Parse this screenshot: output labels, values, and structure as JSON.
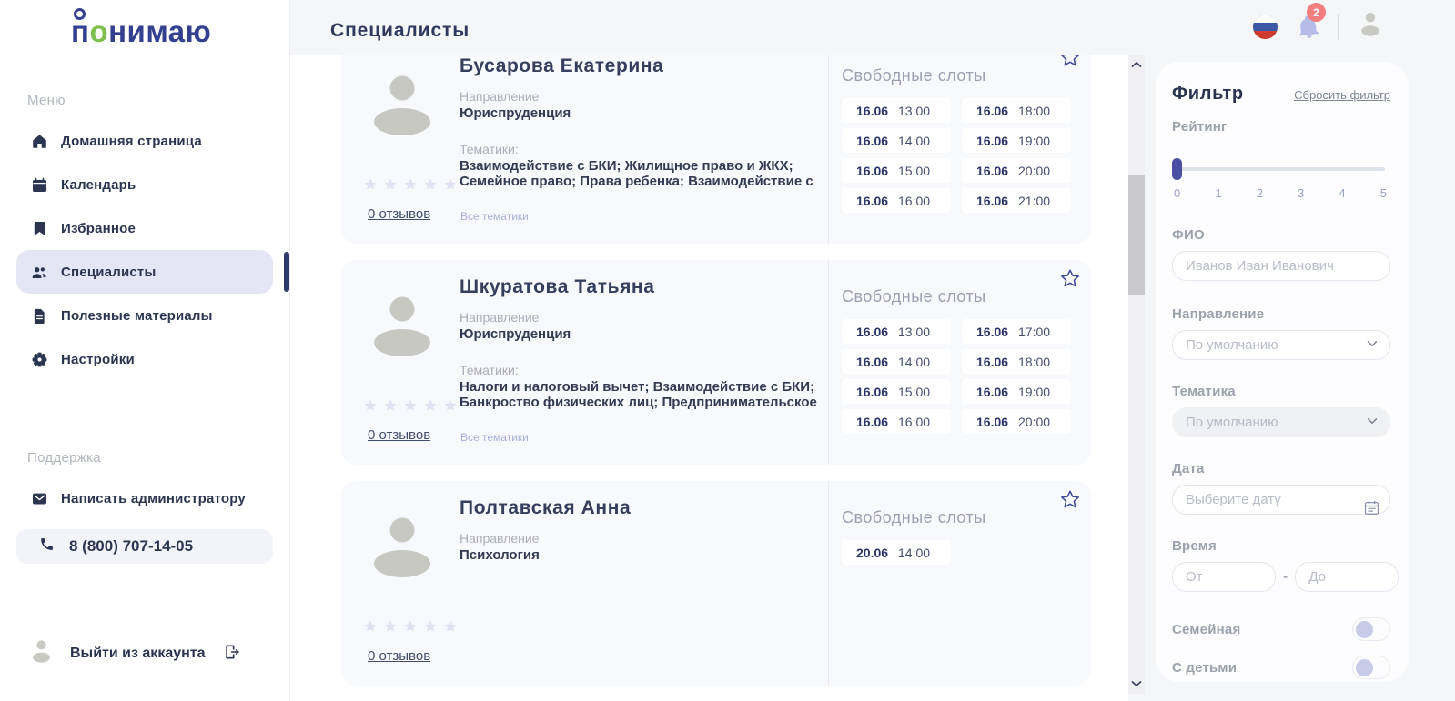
{
  "colors": {
    "brand_navy": "#333f8f",
    "brand_green": "#7fbf4f",
    "text_navy": "#2b3550",
    "slider_thumb": "#4a51a3",
    "badge_red": "#f27e80",
    "card_background": "#f8f9fc",
    "inactive_star": "#dfe2f3",
    "bell_purple": "#b7bce6",
    "active_item_background": "#e4e6f6"
  },
  "brand": {
    "logo_first": "п",
    "logo_accent": "о",
    "logo_rest": "нимаю"
  },
  "topbar": {
    "title": "Специалисты",
    "notification_count": "2"
  },
  "sidebar": {
    "menu_section": "Меню",
    "items": [
      {
        "label": "Домашняя страница",
        "icon": "home-icon",
        "active": false
      },
      {
        "label": "Календарь",
        "icon": "calendar-icon",
        "active": false
      },
      {
        "label": "Избранное",
        "icon": "bookmark-icon",
        "active": false
      },
      {
        "label": "Специалисты",
        "icon": "users-icon",
        "active": true
      },
      {
        "label": "Полезные материалы",
        "icon": "materials-icon",
        "active": false
      },
      {
        "label": "Настройки",
        "icon": "settings-icon",
        "active": false
      }
    ],
    "support_section": "Поддержка",
    "admin_link": "Написать администратору",
    "phone": "8 (800) 707-14-05",
    "logout": "Выйти из аккаунта"
  },
  "specialists": [
    {
      "name": "Бусарова Екатерина",
      "direction_label": "Направление",
      "direction": "Юриспруденция",
      "topics_label": "Тематики:",
      "topics": "Взаимодействие с БКИ; Жилищное право и ЖКХ; Семейное право; Права ребенка; Взаимодействие с",
      "rating": 0,
      "stars_total": 5,
      "reviews": "0 отзывов",
      "all_topics_link": "Все тематики",
      "slots_title": "Свободные слоты",
      "slot_columns": [
        [
          {
            "date": "16.06",
            "time": "13:00"
          },
          {
            "date": "16.06",
            "time": "14:00"
          },
          {
            "date": "16.06",
            "time": "15:00"
          },
          {
            "date": "16.06",
            "time": "16:00"
          }
        ],
        [
          {
            "date": "16.06",
            "time": "18:00"
          },
          {
            "date": "16.06",
            "time": "19:00"
          },
          {
            "date": "16.06",
            "time": "20:00"
          },
          {
            "date": "16.06",
            "time": "21:00"
          }
        ]
      ]
    },
    {
      "name": "Шкуратова Татьяна",
      "direction_label": "Направление",
      "direction": "Юриспруденция",
      "topics_label": "Тематики:",
      "topics": "Налоги и налоговый вычет; Взаимодействие с БКИ; Банкроство физических лиц; Предпринимательское",
      "rating": 0,
      "stars_total": 5,
      "reviews": "0 отзывов",
      "all_topics_link": "Все тематики",
      "slots_title": "Свободные слоты",
      "slot_columns": [
        [
          {
            "date": "16.06",
            "time": "13:00"
          },
          {
            "date": "16.06",
            "time": "14:00"
          },
          {
            "date": "16.06",
            "time": "15:00"
          },
          {
            "date": "16.06",
            "time": "16:00"
          }
        ],
        [
          {
            "date": "16.06",
            "time": "17:00"
          },
          {
            "date": "16.06",
            "time": "18:00"
          },
          {
            "date": "16.06",
            "time": "19:00"
          },
          {
            "date": "16.06",
            "time": "20:00"
          }
        ]
      ]
    },
    {
      "name": "Полтавская Анна",
      "direction_label": "Направление",
      "direction": "Психология",
      "rating": 0,
      "stars_total": 5,
      "reviews": "0 отзывов",
      "slots_title": "Свободные слоты",
      "slot_columns": [
        [
          {
            "date": "20.06",
            "time": "14:00"
          }
        ]
      ]
    }
  ],
  "filter": {
    "title": "Фильтр",
    "reset_link": "Сбросить фильтр",
    "rating_label": "Рейтинг",
    "rating_value": 0,
    "rating_ticks": [
      "0",
      "1",
      "2",
      "3",
      "4",
      "5"
    ],
    "fio_label": "ФИО",
    "fio_placeholder": "Иванов Иван Иванович",
    "direction_label": "Направление",
    "direction_value": "По умолчанию",
    "topic_label": "Тематика",
    "topic_value": "По умолчанию",
    "date_label": "Дата",
    "date_placeholder": "Выберите дату",
    "time_label": "Время",
    "time_from_placeholder": "От",
    "time_to_placeholder": "До",
    "time_separator": "-",
    "family_label": "Семейная",
    "family_enabled": false,
    "children_label": "С детьми",
    "children_enabled": false
  }
}
